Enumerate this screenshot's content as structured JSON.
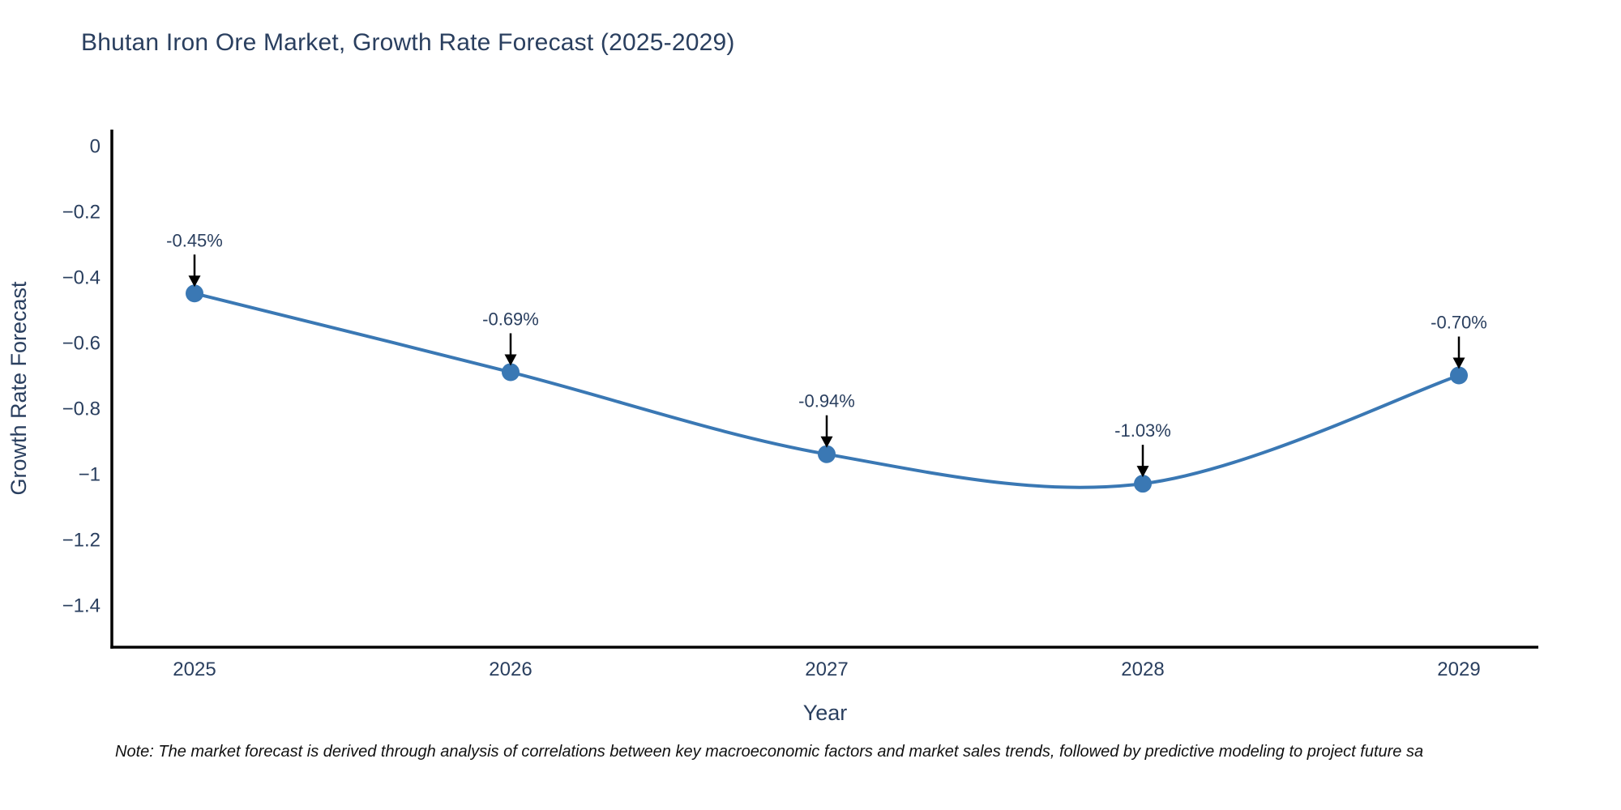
{
  "chart_data": {
    "type": "line",
    "title": "Bhutan Iron Ore Market, Growth Rate Forecast (2025-2029)",
    "xlabel": "Year",
    "ylabel": "Growth Rate Forecast",
    "categories": [
      "2025",
      "2026",
      "2027",
      "2028",
      "2029"
    ],
    "values": [
      -0.45,
      -0.69,
      -0.94,
      -1.03,
      -0.7
    ],
    "point_labels": [
      "-0.45%",
      "-0.69%",
      "-0.94%",
      "-1.03%",
      "-0.70%"
    ],
    "ytick_labels": [
      "0",
      "−0.2",
      "−0.4",
      "−0.6",
      "−0.8",
      "−1",
      "−1.2",
      "−1.4"
    ],
    "ytick_values": [
      0,
      -0.2,
      -0.4,
      -0.6,
      -0.8,
      -1,
      -1.2,
      -1.4
    ],
    "ylim": [
      0.05,
      -1.53
    ],
    "line_shape": "spline",
    "grid": false,
    "legend_position": "none",
    "colors": {
      "line": "#3a78b4",
      "marker": "#3a78b4",
      "axis_line": "#000000",
      "tick_text": "#2a3f5f",
      "axis_title_text": "#2a3f5f",
      "annotation_text": "#2a3f5f",
      "annotation_arrow": "#000000",
      "title_text": "#2a3f5f",
      "note_text": "#111111",
      "background": "#ffffff"
    }
  },
  "note": "Note: The market forecast is derived through analysis of correlations between key macroeconomic factors and market sales trends, followed by predictive modeling to project future sa"
}
